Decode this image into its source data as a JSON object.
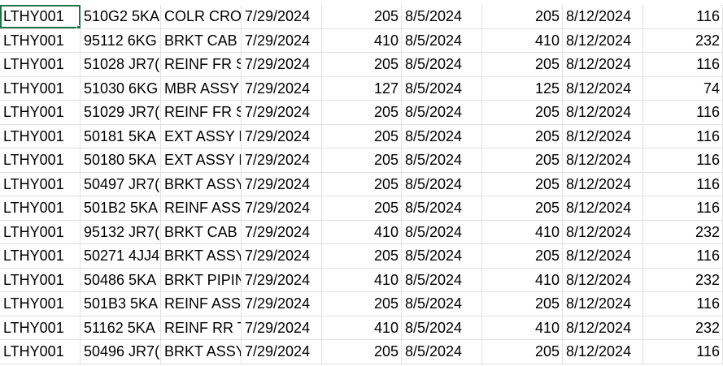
{
  "sheet": {
    "rows": [
      [
        "LTHY001",
        "510G2 5KA",
        "COLR CROS",
        "7/29/2024",
        "205",
        "8/5/2024",
        "205",
        "8/12/2024",
        "116"
      ],
      [
        "LTHY001",
        "95112 6KG",
        "BRKT CAB",
        "7/29/2024",
        "410",
        "8/5/2024",
        "410",
        "8/12/2024",
        "232"
      ],
      [
        "LTHY001",
        "51028 JR7(",
        "REINF FR S",
        "7/29/2024",
        "205",
        "8/5/2024",
        "205",
        "8/12/2024",
        "116"
      ],
      [
        "LTHY001",
        "51030 6KG",
        "MBR ASSY",
        "7/29/2024",
        "127",
        "8/5/2024",
        "125",
        "8/12/2024",
        "74"
      ],
      [
        "LTHY001",
        "51029 JR7(",
        "REINF FR S",
        "7/29/2024",
        "205",
        "8/5/2024",
        "205",
        "8/12/2024",
        "116"
      ],
      [
        "LTHY001",
        "50181 5KA",
        "EXT ASSY F",
        "7/29/2024",
        "205",
        "8/5/2024",
        "205",
        "8/12/2024",
        "116"
      ],
      [
        "LTHY001",
        "50180 5KA",
        "EXT ASSY F",
        "7/29/2024",
        "205",
        "8/5/2024",
        "205",
        "8/12/2024",
        "116"
      ],
      [
        "LTHY001",
        "50497 JR7(",
        "BRKT ASSY",
        "7/29/2024",
        "205",
        "8/5/2024",
        "205",
        "8/12/2024",
        "116"
      ],
      [
        "LTHY001",
        "501B2 5KA",
        "REINF ASSY",
        "7/29/2024",
        "205",
        "8/5/2024",
        "205",
        "8/12/2024",
        "116"
      ],
      [
        "LTHY001",
        "95132 JR7(",
        "BRKT CAB",
        "7/29/2024",
        "410",
        "8/5/2024",
        "410",
        "8/12/2024",
        "232"
      ],
      [
        "LTHY001",
        "50271 4JJ4",
        "BRKT ASSY",
        "7/29/2024",
        "205",
        "8/5/2024",
        "205",
        "8/12/2024",
        "116"
      ],
      [
        "LTHY001",
        "50486 5KA",
        "BRKT PIPIN",
        "7/29/2024",
        "410",
        "8/5/2024",
        "410",
        "8/12/2024",
        "232"
      ],
      [
        "LTHY001",
        "501B3 5KA",
        "REINF ASSY",
        "7/29/2024",
        "205",
        "8/5/2024",
        "205",
        "8/12/2024",
        "116"
      ],
      [
        "LTHY001",
        "51162 5KA",
        "REINF RR T",
        "7/29/2024",
        "410",
        "8/5/2024",
        "410",
        "8/12/2024",
        "232"
      ],
      [
        "LTHY001",
        "50496 JR7(",
        "BRKT ASSY",
        "7/29/2024",
        "205",
        "8/5/2024",
        "205",
        "8/12/2024",
        "116"
      ]
    ],
    "selected_cell": [
      0,
      0
    ],
    "colors": {
      "gridline": "#e1e1e1",
      "selection": "#217346",
      "text": "#000000"
    }
  }
}
